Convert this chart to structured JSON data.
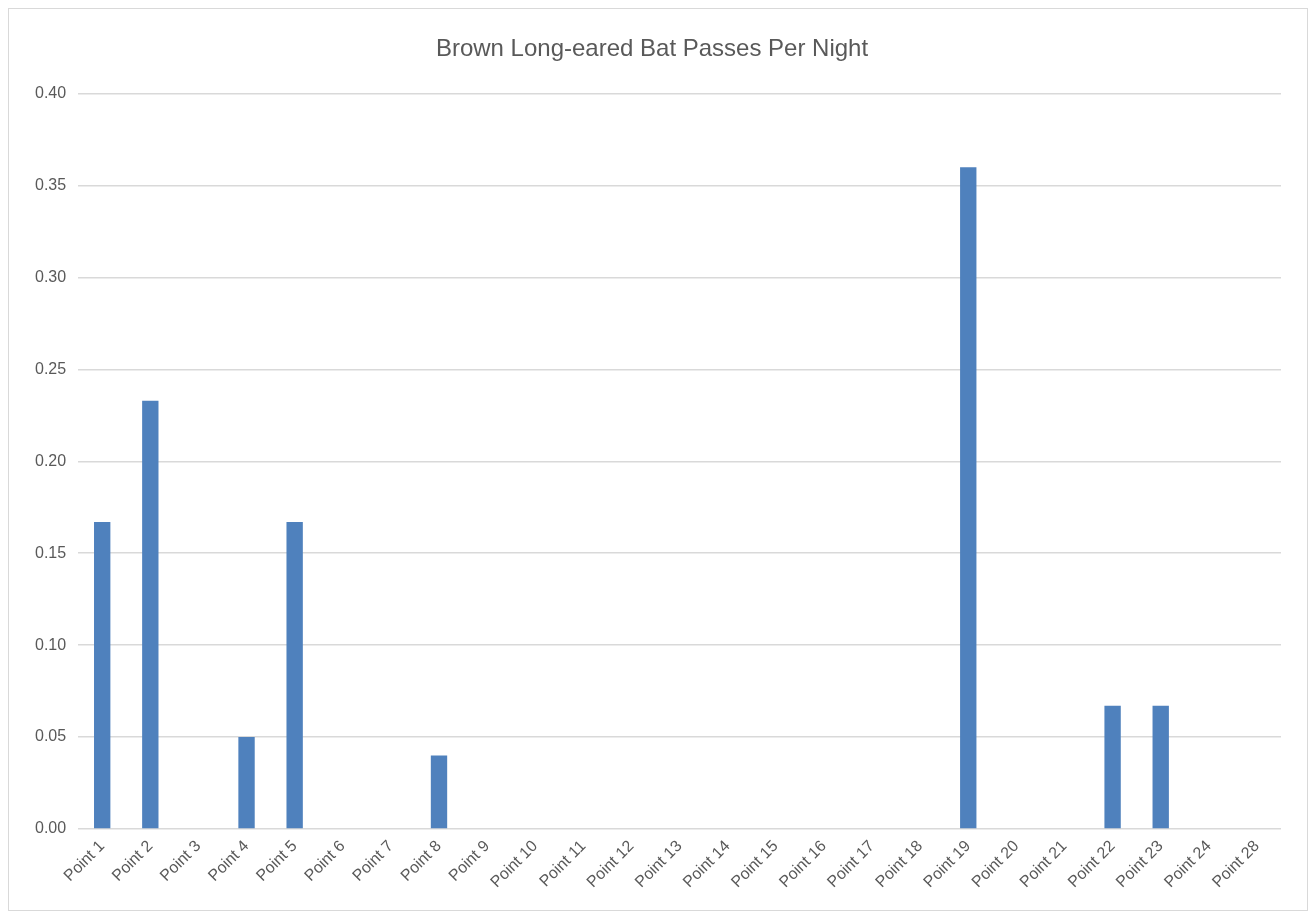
{
  "chart_data": {
    "type": "bar",
    "title": "Brown Long-eared Bat Passes Per Night",
    "categories": [
      "Point 1",
      "Point 2",
      "Point 3",
      "Point 4",
      "Point 5",
      "Point 6",
      "Point 7",
      "Point 8",
      "Point 9",
      "Point 10",
      "Point 11",
      "Point 12",
      "Point 13",
      "Point 14",
      "Point 15",
      "Point 16",
      "Point 17",
      "Point 18",
      "Point 19",
      "Point 20",
      "Point 21",
      "Point 22",
      "Point 23",
      "Point 24",
      "Point 28"
    ],
    "values": [
      0.167,
      0.233,
      0,
      0.05,
      0.167,
      0,
      0,
      0.04,
      0,
      0,
      0,
      0,
      0,
      0,
      0,
      0,
      0,
      0,
      0.36,
      0,
      0,
      0.067,
      0.067,
      0,
      0
    ],
    "color": "#4f81bd",
    "ylim": [
      0,
      0.4
    ],
    "yticks": [
      {
        "value": 0,
        "label": "0.00"
      },
      {
        "value": 0.05,
        "label": "0.05"
      },
      {
        "value": 0.1,
        "label": "0.10"
      },
      {
        "value": 0.15,
        "label": "0.15"
      },
      {
        "value": 0.2,
        "label": "0.20"
      },
      {
        "value": 0.25,
        "label": "0.25"
      },
      {
        "value": 0.3,
        "label": "0.30"
      },
      {
        "value": 0.35,
        "label": "0.35"
      },
      {
        "value": 0.4,
        "label": "0.40"
      }
    ],
    "grid": "y",
    "legend": false
  }
}
